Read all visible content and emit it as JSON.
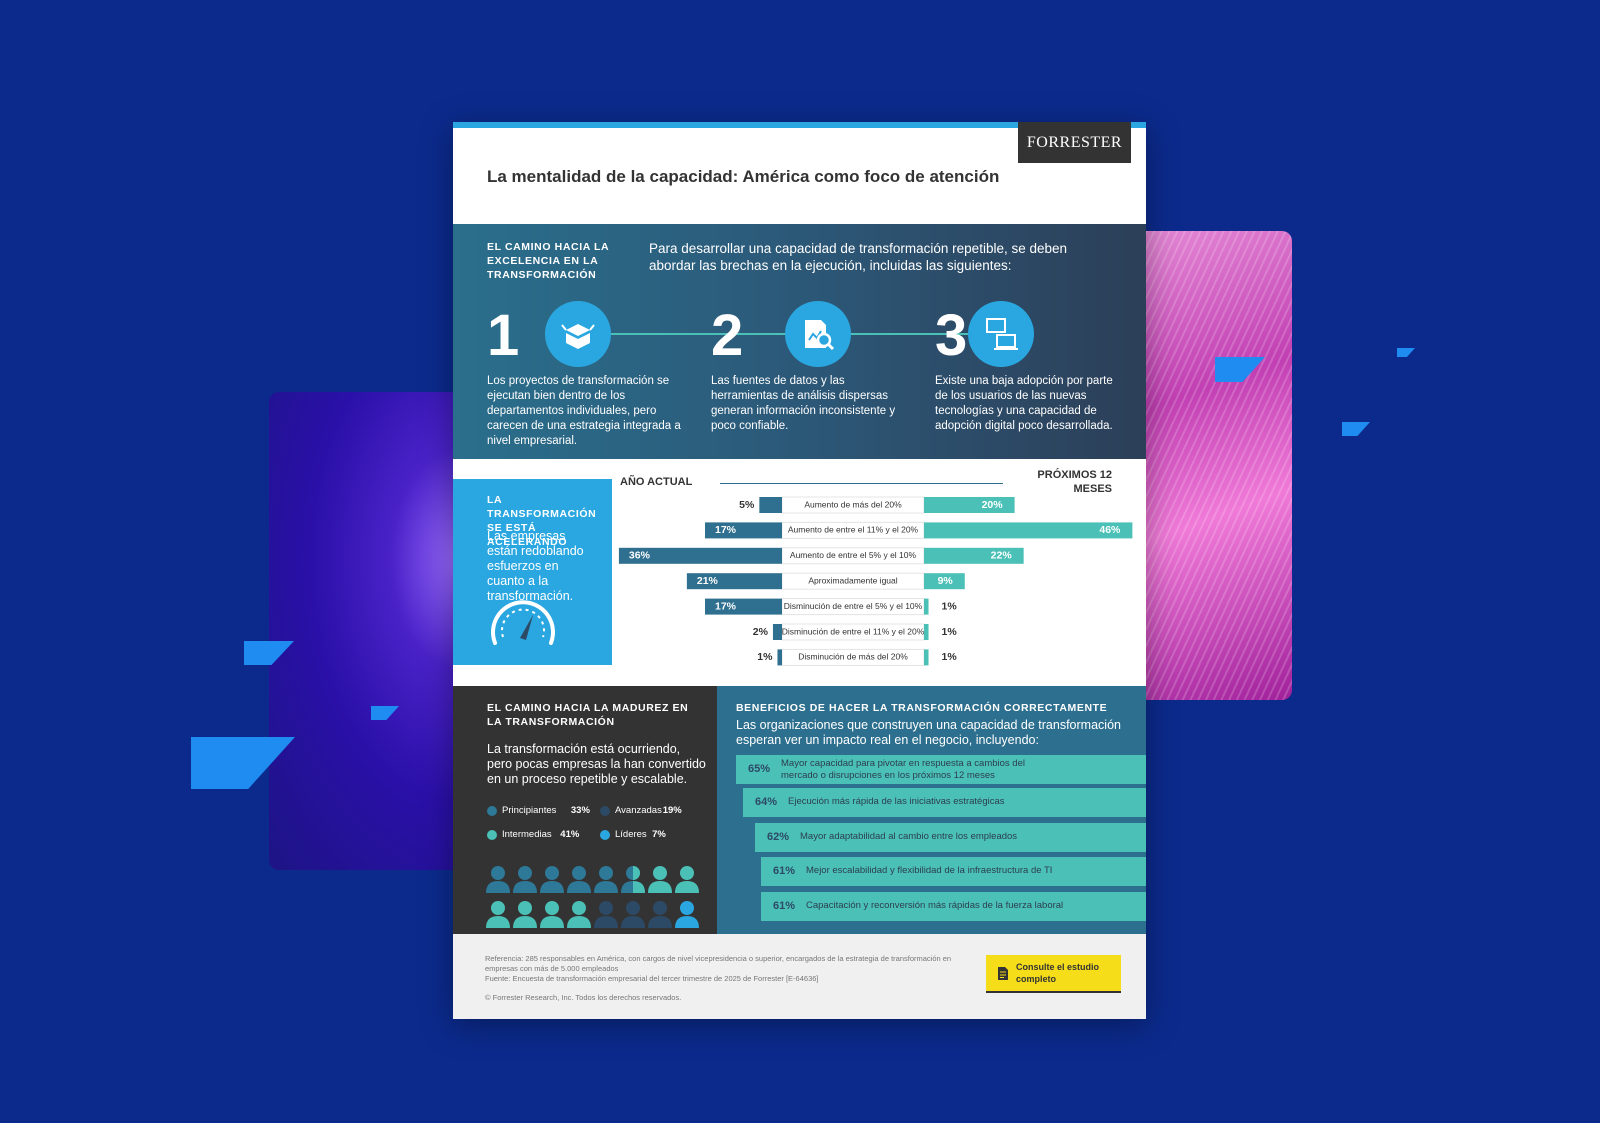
{
  "brand": "FORRESTER",
  "title": "La mentalidad de la capacidad: América como foco de atención",
  "path": {
    "heading": "EL CAMINO HACIA LA EXCELENCIA EN LA TRANSFORMACIÓN",
    "intro": "Para desarrollar una capacidad de transformación repetible, se deben abordar las brechas en la ejecución, incluidas las siguientes:",
    "steps": [
      {
        "number": "1",
        "text": "Los proyectos de transformación se ejecutan bien dentro de los departamentos individuales, pero carecen de una estrategia integrada a nivel empresarial."
      },
      {
        "number": "2",
        "text": "Las fuentes de datos y las herramientas de análisis dispersas generan información inconsistente y poco confiable."
      },
      {
        "number": "3",
        "text": "Existe una baja adopción por parte de los usuarios de las nuevas tecnologías y una capacidad de adopción digital poco desarrollada."
      }
    ]
  },
  "accelerating": {
    "heading": "LA TRANSFORMACIÓN SE ESTÁ ACELERANDO",
    "text": "Las empresas están redoblando esfuerzos en cuanto a la transformación."
  },
  "chart_data": {
    "type": "diverging-bar",
    "categories": [
      "Aumento de más del 20%",
      "Aumento de entre el 11% y el 20%",
      "Aumento de entre el 5% y el 10%",
      "Aproximadamente igual",
      "Disminución de entre el 5% y el 10%",
      "Disminución de entre el 11% y el 20%",
      "Disminución de más del 20%"
    ],
    "series": [
      {
        "name": "AÑO ACTUAL",
        "color": "#2f6f8f",
        "values": [
          5,
          17,
          36,
          21,
          17,
          2,
          1
        ],
        "value_labels": [
          "5%",
          "17%",
          "36%",
          "21%",
          "17%",
          "2%",
          "1%"
        ]
      },
      {
        "name": "PRÓXIMOS 12 MESES",
        "color": "#4bc0b7",
        "values": [
          20,
          46,
          22,
          9,
          1,
          1,
          1
        ],
        "value_labels": [
          "20%",
          "46%",
          "22%",
          "9%",
          "1%",
          "1%",
          "1%"
        ]
      }
    ]
  },
  "maturity": {
    "heading": "EL CAMINO HACIA LA MADUREZ EN LA TRANSFORMACIÓN",
    "text": "La transformación está ocurriendo, pero pocas empresas la han convertido en un proceso repetible y escalable.",
    "legend": [
      {
        "name": "Principiantes",
        "value": "33%",
        "color": "#2e7898"
      },
      {
        "name": "Avanzadas",
        "value": "19%",
        "color": "#2c4a66"
      },
      {
        "name": "Intermedias",
        "value": "41%",
        "color": "#4bc0b7"
      },
      {
        "name": "Líderes",
        "value": "7%",
        "color": "#2aa7e0"
      }
    ]
  },
  "benefits": {
    "heading": "BENEFICIOS DE HACER LA TRANSFORMACIÓN CORRECTAMENTE",
    "intro": "Las organizaciones que construyen una capacidad de transformación esperan ver un impacto real en el negocio, incluyendo:",
    "items": [
      {
        "value": "65%",
        "text": "Mayor capacidad para pivotar en respuesta a cambios del mercado o disrupciones en los próximos 12 meses"
      },
      {
        "value": "64%",
        "text": "Ejecución más rápida de las iniciativas estratégicas"
      },
      {
        "value": "62%",
        "text": "Mayor adaptabilidad al cambio entre los empleados"
      },
      {
        "value": "61%",
        "text": "Mejor escalabilidad y flexibilidad de la infraestructura de TI"
      },
      {
        "value": "61%",
        "text": "Capacitación y reconversión más rápidas de la fuerza laboral"
      }
    ]
  },
  "footer": {
    "reference": "Referencia: 285 responsables en América, con cargos de nivel vicepresidencia o superior, encargados de la estrategia de transformación en empresas con más de 5.000 empleados",
    "source": "Fuente: Encuesta de transformación empresarial del tercer trimestre de 2025 de Forrester [E-64636]",
    "copyright": "© Forrester Research, Inc. Todos los derechos reservados.",
    "cta": "Consulte el estudio completo"
  }
}
